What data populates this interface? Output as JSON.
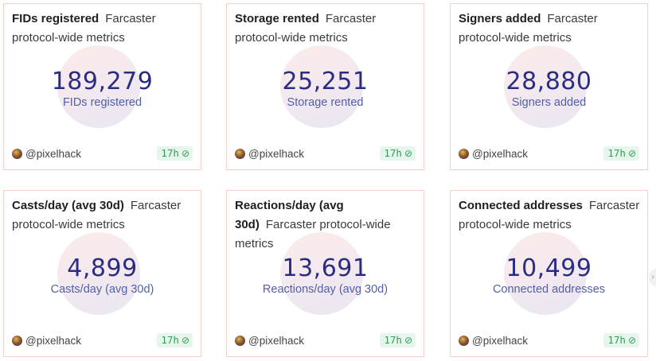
{
  "cards": [
    {
      "title": "FIDs registered",
      "desc": "Farcaster protocol-wide metrics",
      "value": "189,279",
      "label": "FIDs registered",
      "author": "@pixelhack",
      "age": "17h",
      "status_icon": "clock-check-icon"
    },
    {
      "title": "Storage rented",
      "desc": "Farcaster protocol-wide metrics",
      "value": "25,251",
      "label": "Storage rented",
      "author": "@pixelhack",
      "age": "17h",
      "status_icon": "clock-check-icon"
    },
    {
      "title": "Signers added",
      "desc": "Farcaster protocol-wide metrics",
      "value": "28,880",
      "label": "Signers added",
      "author": "@pixelhack",
      "age": "17h",
      "status_icon": "clock-check-icon"
    },
    {
      "title": "Casts/day (avg 30d)",
      "desc": "Farcaster protocol-wide metrics",
      "value": "4,899",
      "label": "Casts/day (avg 30d)",
      "author": "@pixelhack",
      "age": "17h",
      "status_icon": "clock-check-icon"
    },
    {
      "title": "Reactions/day (avg 30d)",
      "desc": "Farcaster protocol-wide metrics",
      "value": "13,691",
      "label": "Reactions/day (avg 30d)",
      "author": "@pixelhack",
      "age": "17h",
      "status_icon": "clock-check-icon"
    },
    {
      "title": "Connected addresses",
      "desc": "Farcaster protocol-wide metrics",
      "value": "10,499",
      "label": "Connected addresses",
      "author": "@pixelhack",
      "age": "17h",
      "status_icon": "clock-check-icon"
    }
  ],
  "next_arrow_icon": "chevron-right-icon"
}
